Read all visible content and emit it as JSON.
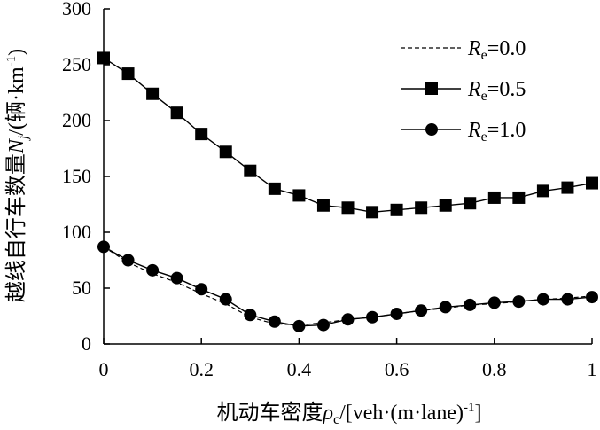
{
  "chart_data": {
    "type": "line",
    "title": "",
    "xlabel": "机动车密度ρc/[veh·(m·lane)-1]",
    "xlabel_parts": {
      "prefix": "机动车密度",
      "rho": "ρ",
      "rho_sub": "c",
      "suffix": "/[veh·(m·lane)",
      "sup": "-1",
      "end": "]"
    },
    "ylabel": "越线自行车数量Nj/(辆·km-1)",
    "ylabel_parts": {
      "prefix": "越线自行车数量",
      "var": "N",
      "var_sub": "j",
      "mid": "/(辆·km",
      "sup": "-1",
      "end": ")"
    },
    "xlim": [
      0,
      1
    ],
    "ylim": [
      0,
      300
    ],
    "xticks": [
      0,
      0.2,
      0.4,
      0.6,
      0.8,
      1
    ],
    "xtick_labels": [
      "0",
      "0.2",
      "0.4",
      "0.6",
      "0.8",
      "1"
    ],
    "yticks": [
      0,
      50,
      100,
      150,
      200,
      250,
      300
    ],
    "ytick_labels": [
      "0",
      "50",
      "100",
      "150",
      "200",
      "250",
      "300"
    ],
    "legend_position": "top-right",
    "x": [
      0,
      0.05,
      0.1,
      0.15,
      0.2,
      0.25,
      0.3,
      0.35,
      0.4,
      0.45,
      0.5,
      0.55,
      0.6,
      0.65,
      0.7,
      0.75,
      0.8,
      0.85,
      0.9,
      0.95,
      1.0
    ],
    "series": [
      {
        "name": "Re=0.0",
        "label_var": "R",
        "label_sub": "e",
        "label_val": "=0.0",
        "style": "dashed",
        "marker": "none",
        "values": [
          87,
          73,
          63,
          55,
          45,
          36,
          24,
          18,
          17,
          19,
          22,
          24,
          27,
          30,
          32,
          35,
          36,
          38,
          40,
          41,
          43
        ]
      },
      {
        "name": "Re=0.5",
        "label_var": "R",
        "label_sub": "e",
        "label_val": "=0.5",
        "style": "solid",
        "marker": "square",
        "values": [
          256,
          242,
          224,
          207,
          188,
          172,
          155,
          139,
          133,
          124,
          122,
          118,
          120,
          122,
          124,
          126,
          131,
          131,
          137,
          140,
          144
        ]
      },
      {
        "name": "Re=1.0",
        "label_var": "R",
        "label_sub": "e",
        "label_val": "=1.0",
        "style": "solid",
        "marker": "circle",
        "values": [
          87,
          75,
          66,
          59,
          49,
          40,
          26,
          20,
          16,
          17,
          22,
          24,
          27,
          30,
          33,
          35,
          37,
          38,
          40,
          40,
          42
        ]
      }
    ]
  }
}
